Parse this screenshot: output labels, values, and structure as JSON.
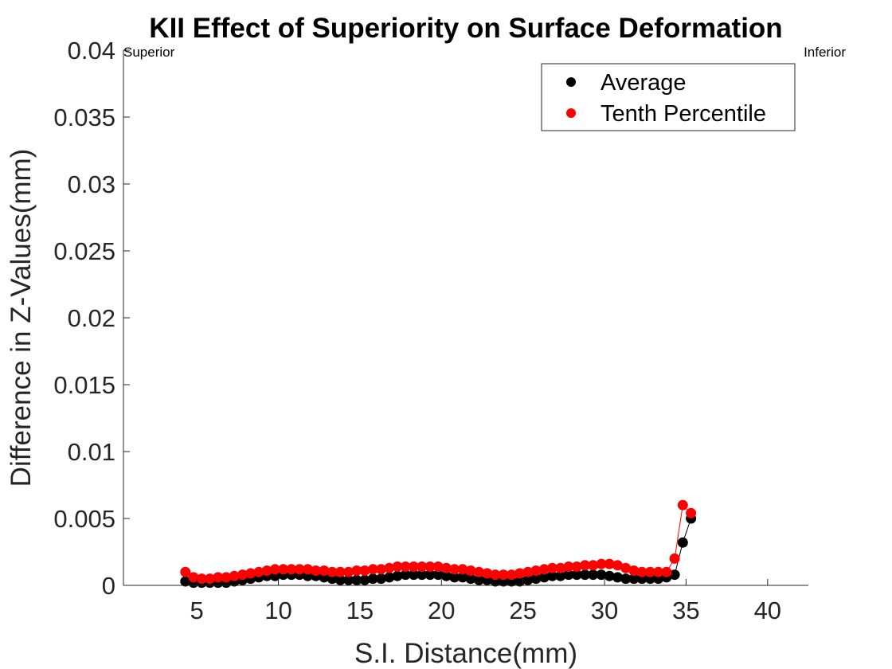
{
  "chart_data": {
    "type": "scatter",
    "title": "KII  Effect of Superiority on Surface Deformation",
    "xlabel": "S.I. Distance(mm)",
    "ylabel": "Difference in Z-Values(mm)",
    "xlim": [
      0.5,
      42.5
    ],
    "ylim": [
      0,
      0.04
    ],
    "xticks": [
      5,
      10,
      15,
      20,
      25,
      30,
      35,
      40
    ],
    "xtick_labels": [
      "5",
      "10",
      "15",
      "20",
      "25",
      "30",
      "35",
      "40"
    ],
    "yticks": [
      0,
      0.005,
      0.01,
      0.015,
      0.02,
      0.025,
      0.03,
      0.035,
      0.04
    ],
    "ytick_labels": [
      "0",
      "0.005",
      "0.01",
      "0.015",
      "0.02",
      "0.025",
      "0.03",
      "0.035",
      "0.04"
    ],
    "grid": false,
    "legend_position": "top-right",
    "annotations": {
      "left": "Superior",
      "right": "Inferior"
    },
    "series": [
      {
        "name": "Average",
        "color": "#000000",
        "x": [
          4.3,
          4.8,
          5.3,
          5.8,
          6.3,
          6.8,
          7.3,
          7.8,
          8.3,
          8.8,
          9.3,
          9.8,
          10.3,
          10.8,
          11.3,
          11.8,
          12.3,
          12.8,
          13.3,
          13.8,
          14.3,
          14.8,
          15.3,
          15.8,
          16.3,
          16.8,
          17.3,
          17.8,
          18.3,
          18.8,
          19.3,
          19.8,
          20.3,
          20.8,
          21.3,
          21.8,
          22.3,
          22.8,
          23.3,
          23.8,
          24.3,
          24.8,
          25.3,
          25.8,
          26.3,
          26.8,
          27.3,
          27.8,
          28.3,
          28.8,
          29.3,
          29.8,
          30.3,
          30.8,
          31.3,
          31.8,
          32.3,
          32.8,
          33.3,
          33.8,
          34.3,
          34.8,
          35.3
        ],
        "y": [
          0.0003,
          0.0002,
          0.0002,
          0.0002,
          0.0002,
          0.0002,
          0.0003,
          0.0004,
          0.0005,
          0.0006,
          0.0007,
          0.0007,
          0.0008,
          0.0008,
          0.0008,
          0.0007,
          0.0007,
          0.0006,
          0.0005,
          0.0004,
          0.0004,
          0.0004,
          0.0004,
          0.0005,
          0.0005,
          0.0006,
          0.0007,
          0.0008,
          0.0008,
          0.0008,
          0.0008,
          0.0008,
          0.0007,
          0.0006,
          0.0006,
          0.0005,
          0.0004,
          0.0004,
          0.0003,
          0.0003,
          0.0003,
          0.0003,
          0.0004,
          0.0005,
          0.0006,
          0.0007,
          0.0007,
          0.0008,
          0.0008,
          0.0008,
          0.0008,
          0.0008,
          0.0007,
          0.0006,
          0.0005,
          0.0005,
          0.0005,
          0.0005,
          0.0005,
          0.0006,
          0.0008,
          0.0032,
          0.005
        ]
      },
      {
        "name": "Tenth Percentile",
        "color": "#ff0000",
        "x": [
          4.3,
          4.8,
          5.3,
          5.8,
          6.3,
          6.8,
          7.3,
          7.8,
          8.3,
          8.8,
          9.3,
          9.8,
          10.3,
          10.8,
          11.3,
          11.8,
          12.3,
          12.8,
          13.3,
          13.8,
          14.3,
          14.8,
          15.3,
          15.8,
          16.3,
          16.8,
          17.3,
          17.8,
          18.3,
          18.8,
          19.3,
          19.8,
          20.3,
          20.8,
          21.3,
          21.8,
          22.3,
          22.8,
          23.3,
          23.8,
          24.3,
          24.8,
          25.3,
          25.8,
          26.3,
          26.8,
          27.3,
          27.8,
          28.3,
          28.8,
          29.3,
          29.8,
          30.3,
          30.8,
          31.3,
          31.8,
          32.3,
          32.8,
          33.3,
          33.8,
          34.3,
          34.8,
          35.3
        ],
        "y": [
          0.001,
          0.0006,
          0.0005,
          0.0005,
          0.0006,
          0.0006,
          0.0007,
          0.0008,
          0.0009,
          0.001,
          0.0011,
          0.0012,
          0.0012,
          0.0012,
          0.0012,
          0.0012,
          0.0011,
          0.0011,
          0.001,
          0.001,
          0.001,
          0.0011,
          0.0011,
          0.0012,
          0.0012,
          0.0013,
          0.0014,
          0.0014,
          0.0014,
          0.0014,
          0.0014,
          0.0014,
          0.0013,
          0.0012,
          0.0012,
          0.0011,
          0.001,
          0.0009,
          0.0008,
          0.0008,
          0.0008,
          0.0009,
          0.001,
          0.0011,
          0.0012,
          0.0013,
          0.0013,
          0.0014,
          0.0014,
          0.0015,
          0.0015,
          0.0016,
          0.0016,
          0.0015,
          0.0013,
          0.0011,
          0.001,
          0.001,
          0.001,
          0.001,
          0.002,
          0.006,
          0.0054
        ]
      }
    ]
  }
}
